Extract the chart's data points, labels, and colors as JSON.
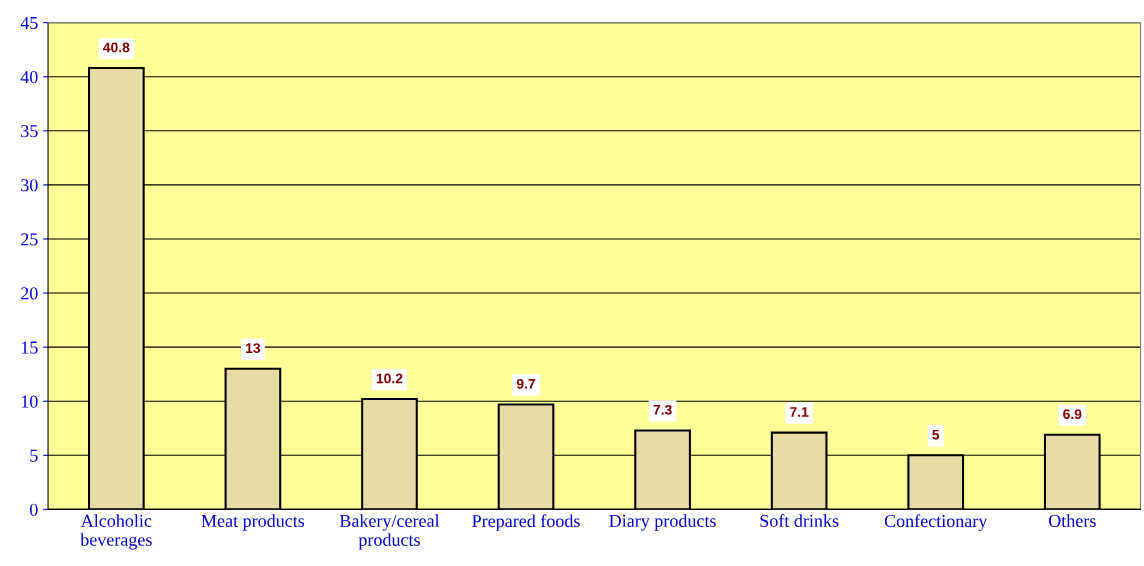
{
  "chart_data": {
    "type": "bar",
    "categories": [
      "Alcoholic\nbeverages",
      "Meat products",
      "Bakery/cereal\nproducts",
      "Prepared foods",
      "Diary products",
      "Soft drinks",
      "Confectionary",
      "Others"
    ],
    "values": [
      40.8,
      13,
      10.2,
      9.7,
      7.3,
      7.1,
      5,
      6.9
    ],
    "color": "#e9dba6",
    "ylim": [
      0,
      45
    ],
    "yticks": [
      0,
      5,
      10,
      15,
      20,
      25,
      30,
      35,
      40,
      45
    ],
    "grid": "y",
    "data_labels": true,
    "legend": false
  }
}
